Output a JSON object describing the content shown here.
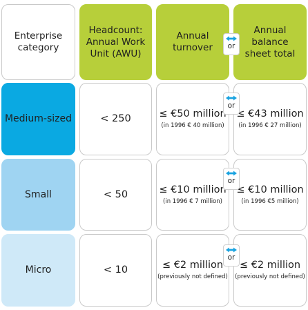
{
  "header": {
    "enterprise_category": "Enterprise\ncategory",
    "headcount": "Headcount:\nAnnual Work\nUnit (AWU)",
    "turnover": "Annual\nturnover",
    "balance": "Annual\nbalance\nsheet total"
  },
  "or_label": "or",
  "icons": {
    "or_arrow": "double-arrow-icon",
    "arrow_color": "#1aa3e0"
  },
  "colors": {
    "header_green": "#b7cf3a",
    "medium": "#0aa9e2",
    "small": "#9fd4f2",
    "micro": "#cfe9f8"
  },
  "rows": [
    {
      "category": "Medium-sized",
      "headcount": "< 250",
      "turnover": "≤ €50 million",
      "turnover_note": "(in 1996 € 40 million)",
      "balance": "≤ €43 million",
      "balance_note": "(in 1996 € 27 million)"
    },
    {
      "category": "Small",
      "headcount": "< 50",
      "turnover": "≤ €10 million",
      "turnover_note": "(in 1996 € 7 million)",
      "balance": "≤ €10 million",
      "balance_note": "(in 1996 €5 million)"
    },
    {
      "category": "Micro",
      "headcount": "< 10",
      "turnover": "≤ €2 million",
      "turnover_note": "(previously not defined)",
      "balance": "≤ €2 million",
      "balance_note": "(previously not defined)"
    }
  ]
}
